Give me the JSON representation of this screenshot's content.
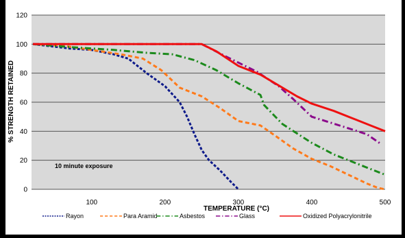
{
  "chart_data": {
    "type": "line",
    "title": "",
    "xlabel": "TEMPERATURE (°C)",
    "ylabel": "% STRENGTH RETAINED",
    "xlim": [
      18,
      500
    ],
    "ylim": [
      0,
      120
    ],
    "x_ticks": [
      100,
      200,
      300,
      400,
      500
    ],
    "y_ticks": [
      0,
      20,
      40,
      60,
      80,
      100,
      120
    ],
    "grid": "horizontal",
    "legend_position": "bottom",
    "annotation": "10 minute exposure",
    "series": [
      {
        "name": "Rayon",
        "color": "#0d1a8a",
        "dash": "dashed",
        "points": [
          [
            20,
            100
          ],
          [
            70,
            97
          ],
          [
            100,
            96
          ],
          [
            130,
            93
          ],
          [
            150,
            90
          ],
          [
            175,
            80
          ],
          [
            200,
            71
          ],
          [
            220,
            60
          ],
          [
            230,
            50
          ],
          [
            240,
            38
          ],
          [
            250,
            27
          ],
          [
            260,
            20
          ],
          [
            275,
            13
          ],
          [
            290,
            5
          ],
          [
            300,
            0
          ]
        ]
      },
      {
        "name": "Para Aramid",
        "color": "#ff7a1a",
        "dash": "dashed",
        "points": [
          [
            20,
            100
          ],
          [
            60,
            99
          ],
          [
            100,
            96
          ],
          [
            140,
            93
          ],
          [
            170,
            90
          ],
          [
            195,
            82
          ],
          [
            220,
            70
          ],
          [
            250,
            64
          ],
          [
            275,
            56
          ],
          [
            300,
            47
          ],
          [
            330,
            44
          ],
          [
            350,
            37
          ],
          [
            375,
            28
          ],
          [
            400,
            21
          ],
          [
            425,
            16
          ],
          [
            450,
            10
          ],
          [
            475,
            4
          ],
          [
            490,
            1
          ],
          [
            500,
            0
          ]
        ]
      },
      {
        "name": "Asbestos",
        "color": "#1c8a1c",
        "dash": "dashdot",
        "points": [
          [
            20,
            100
          ],
          [
            70,
            98
          ],
          [
            130,
            96
          ],
          [
            175,
            94
          ],
          [
            210,
            93
          ],
          [
            240,
            89
          ],
          [
            270,
            82
          ],
          [
            300,
            73
          ],
          [
            330,
            65
          ],
          [
            335,
            58
          ],
          [
            360,
            45
          ],
          [
            400,
            32
          ],
          [
            430,
            24
          ],
          [
            460,
            18
          ],
          [
            480,
            14
          ],
          [
            500,
            10
          ]
        ]
      },
      {
        "name": "Glass",
        "color": "#8b0a8b",
        "dash": "dashdot",
        "points": [
          [
            20,
            100
          ],
          [
            250,
            100
          ],
          [
            285,
            91
          ],
          [
            325,
            81
          ],
          [
            355,
            71
          ],
          [
            375,
            62
          ],
          [
            400,
            50
          ],
          [
            425,
            46
          ],
          [
            450,
            42
          ],
          [
            475,
            38
          ],
          [
            495,
            31
          ]
        ]
      },
      {
        "name": "Oxidized Polyacrylonitrile",
        "color": "#ee1111",
        "dash": "solid",
        "points": [
          [
            20,
            100
          ],
          [
            250,
            100
          ],
          [
            270,
            95
          ],
          [
            300,
            85
          ],
          [
            330,
            79
          ],
          [
            360,
            70
          ],
          [
            380,
            64
          ],
          [
            400,
            59
          ],
          [
            430,
            54
          ],
          [
            460,
            48
          ],
          [
            480,
            44
          ],
          [
            500,
            40
          ]
        ]
      }
    ]
  }
}
